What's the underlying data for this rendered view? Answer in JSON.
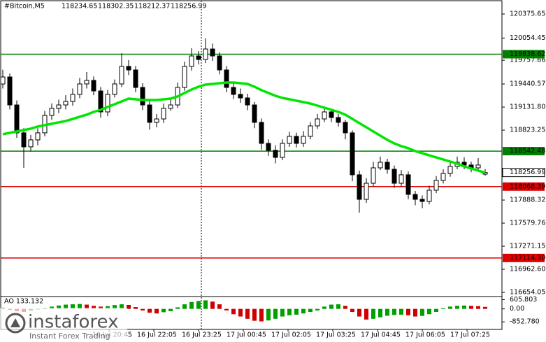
{
  "chart_data": {
    "type": "candlestick",
    "title": "#Bitcoin,M5",
    "ylim": [
      116589,
      120563
    ],
    "yticks": [
      120375.65,
      120054.45,
      119757.66,
      119440.57,
      {
        "value": 119131.8,
        "label": "119131.80"
      },
      118823.25,
      117888.32,
      117579.76,
      117271.15,
      {
        "value": 116962.6,
        "label": "116962.60"
      },
      116654.05
    ],
    "open": [
      119440,
      119534,
      119160,
      118787,
      118600,
      118693,
      118787,
      119020,
      119114,
      119160,
      119207,
      119301,
      119441,
      119488,
      119347,
      119067,
      119301,
      119441,
      119675,
      119628,
      119394,
      119160,
      118927,
      118973,
      119114,
      119160,
      119394,
      119675,
      119815,
      119768,
      119908,
      119815,
      119628,
      119394,
      119301,
      119254,
      119160,
      118927,
      118646,
      118553,
      118459,
      118646,
      118740,
      118646,
      118740,
      118880,
      118973,
      119067,
      118992,
      118927,
      118787,
      118226,
      117898,
      118113,
      118319,
      118394,
      118300,
      118113,
      118226,
      117964,
      117898,
      117870,
      118020,
      118151,
      118244,
      118338,
      118394,
      118357,
      118319,
      118234.65
    ],
    "high": [
      119630,
      119580,
      119220,
      118850,
      118760,
      118850,
      119080,
      119180,
      119230,
      119290,
      119380,
      119520,
      119600,
      119540,
      119400,
      119360,
      119500,
      119850,
      119760,
      119680,
      119450,
      119210,
      119040,
      119180,
      119240,
      119460,
      119740,
      119920,
      119880,
      120050,
      119980,
      119860,
      119680,
      119450,
      119380,
      119310,
      119200,
      118980,
      118700,
      118620,
      118700,
      118800,
      118790,
      118810,
      118930,
      119040,
      119140,
      119110,
      119040,
      118960,
      118820,
      118280,
      118180,
      118400,
      118470,
      118440,
      118350,
      118290,
      118270,
      118010,
      117950,
      118080,
      118210,
      118300,
      118400,
      118470,
      118460,
      118400,
      118450,
      118302.35
    ],
    "low": [
      119380,
      119100,
      118720,
      118320,
      118540,
      118620,
      118740,
      118960,
      119050,
      119100,
      119150,
      119250,
      119380,
      119290,
      118990,
      119010,
      119260,
      119400,
      119560,
      119330,
      119090,
      118830,
      118860,
      118920,
      119080,
      119120,
      119350,
      119620,
      119700,
      119720,
      119750,
      119570,
      119330,
      119240,
      119190,
      119090,
      118850,
      118560,
      118480,
      118380,
      118420,
      118600,
      118590,
      118600,
      118700,
      118840,
      118930,
      118930,
      118870,
      118700,
      118140,
      117720,
      117850,
      118070,
      118290,
      118240,
      118050,
      118070,
      117900,
      117820,
      117780,
      117830,
      117980,
      118110,
      118200,
      118300,
      118300,
      118260,
      118280,
      118212.37
    ],
    "close": [
      119534,
      119160,
      118787,
      118600,
      118693,
      118787,
      119020,
      119114,
      119160,
      119207,
      119301,
      119441,
      119488,
      119347,
      119067,
      119301,
      119441,
      119675,
      119628,
      119394,
      119160,
      118927,
      118973,
      119114,
      119160,
      119394,
      119675,
      119815,
      119768,
      119908,
      119815,
      119628,
      119394,
      119301,
      119254,
      119160,
      118927,
      118646,
      118553,
      118459,
      118646,
      118740,
      118646,
      118740,
      118880,
      118973,
      119067,
      118992,
      118927,
      118787,
      118226,
      117898,
      118113,
      118319,
      118394,
      118300,
      118113,
      118226,
      117964,
      117898,
      117870,
      118020,
      118151,
      118244,
      118338,
      118394,
      118357,
      118319,
      118357,
      118256.99
    ],
    "moving_average": {
      "color": "#00e600",
      "values": [
        118768,
        118787,
        118805,
        118824,
        118843,
        118871,
        118890,
        118908,
        118927,
        118945,
        118973,
        119002,
        119030,
        119067,
        119095,
        119132,
        119170,
        119207,
        119245,
        119235,
        119226,
        119226,
        119226,
        119235,
        119245,
        119273,
        119320,
        119366,
        119404,
        119432,
        119441,
        119450,
        119460,
        119460,
        119450,
        119441,
        119404,
        119357,
        119320,
        119282,
        119254,
        119235,
        119217,
        119198,
        119179,
        119151,
        119123,
        119095,
        119067,
        119030,
        118973,
        118917,
        118861,
        118805,
        118749,
        118693,
        118646,
        118609,
        118581,
        118543,
        118515,
        118487,
        118459,
        118431,
        118403,
        118375,
        118338,
        118310,
        118282,
        118254
      ]
    },
    "levels": [
      {
        "value": 119838.62,
        "color": "#008000"
      },
      {
        "value": 118542.48,
        "color": "#008000"
      },
      {
        "value": 118068.39,
        "color": "#e00000"
      },
      {
        "value": 117114.3,
        "label": "117114.30",
        "color": "#e00000"
      }
    ],
    "time_labels": [
      "16 Jul 20:45",
      "16 Jul 22:05",
      "16 Jul 23:25",
      "17 Jul 00:45",
      "17 Jul 02:05",
      "17 Jul 03:25",
      "17 Jul 04:45",
      "17 Jul 06:05",
      "17 Jul 07:25"
    ],
    "indicator": {
      "label": "AO 133.132",
      "ylim": [
        -1300,
        672
      ],
      "yticks": [
        605.803,
        {
          "value": 0,
          "label": "0.00"
        },
        {
          "value": -852.78,
          "label": "-852.780"
        }
      ],
      "up_color": "#00a000",
      "down_color": "#d00000",
      "values": [
        80,
        -60,
        -150,
        -200,
        -120,
        -40,
        60,
        150,
        220,
        280,
        300,
        320,
        280,
        200,
        150,
        180,
        250,
        300,
        260,
        120,
        -100,
        -250,
        -300,
        -220,
        -150,
        100,
        300,
        450,
        520,
        560,
        480,
        300,
        -100,
        -350,
        -500,
        -650,
        -780,
        -820,
        -760,
        -650,
        -500,
        -420,
        -380,
        -300,
        -200,
        -100,
        150,
        280,
        300,
        200,
        -200,
        -500,
        -700,
        -650,
        -550,
        -450,
        -400,
        -380,
        -420,
        -500,
        -460,
        -350,
        -200,
        50,
        150,
        200,
        220,
        200,
        180,
        133.132
      ]
    },
    "watermark": {
      "brand": "instaforex",
      "tagline": "Instant Forex Trading"
    }
  }
}
